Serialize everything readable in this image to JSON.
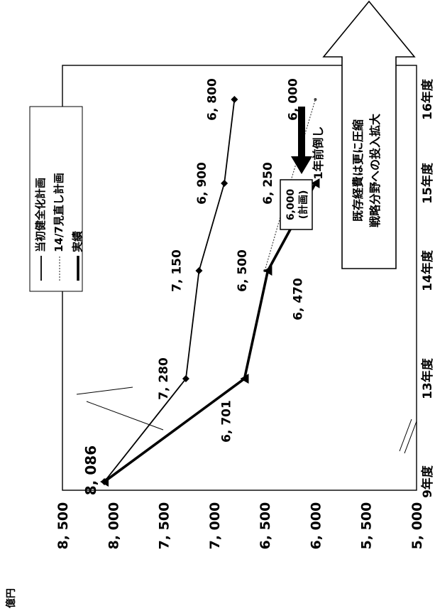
{
  "chart_data": {
    "type": "line",
    "orientation": "rotated-90-clockwise",
    "y_unit": "億円",
    "ylim": [
      5000,
      8500
    ],
    "y_ticks": [
      "8, 500",
      "8, 000",
      "7, 500",
      "7, 000",
      "6, 500",
      "6, 000",
      "5, 500",
      "5, 000"
    ],
    "categories": [
      "9年度",
      "13年度",
      "14年度",
      "15年度",
      "16年度"
    ],
    "series": [
      {
        "name": "当初健全化計画",
        "marker": "diamond",
        "points": [
          {
            "x": "9年度",
            "y": 8086
          },
          {
            "x": "13年度",
            "y": 7280
          },
          {
            "x": "14年度",
            "y": 7150
          },
          {
            "x": "15年度",
            "y": 6900
          },
          {
            "x": "16年度",
            "y": 6800
          }
        ],
        "labels": [
          "8, 086",
          "7, 280",
          "7, 150",
          "6, 900",
          "6, 800"
        ]
      },
      {
        "name": "14/7見直し計画",
        "marker": "small-dot",
        "points": [
          {
            "x": "14年度",
            "y": 6500
          },
          {
            "x": "15年度",
            "y": 6250
          },
          {
            "x": "16年度",
            "y": 6000
          }
        ],
        "labels": [
          "6, 500",
          "6, 250",
          "6, 000"
        ]
      },
      {
        "name": "実績",
        "marker": "triangle",
        "points": [
          {
            "x": "9年度",
            "y": 8086
          },
          {
            "x": "13年度",
            "y": 6701
          },
          {
            "x": "14年度",
            "y": 6470
          },
          {
            "x": "15年度",
            "y": 6000
          }
        ],
        "labels": [
          "",
          "6, 701",
          "6, 470",
          ""
        ]
      }
    ],
    "annotations": {
      "plan_box": [
        "6,000",
        "(計画)"
      ],
      "advance_note": "1年前倒し",
      "big_arrow_lines": [
        "既存経費は更に圧縮",
        "戦略分野への投入拡大"
      ]
    },
    "legend_placement": "top-left (rotated)",
    "grid": false
  }
}
